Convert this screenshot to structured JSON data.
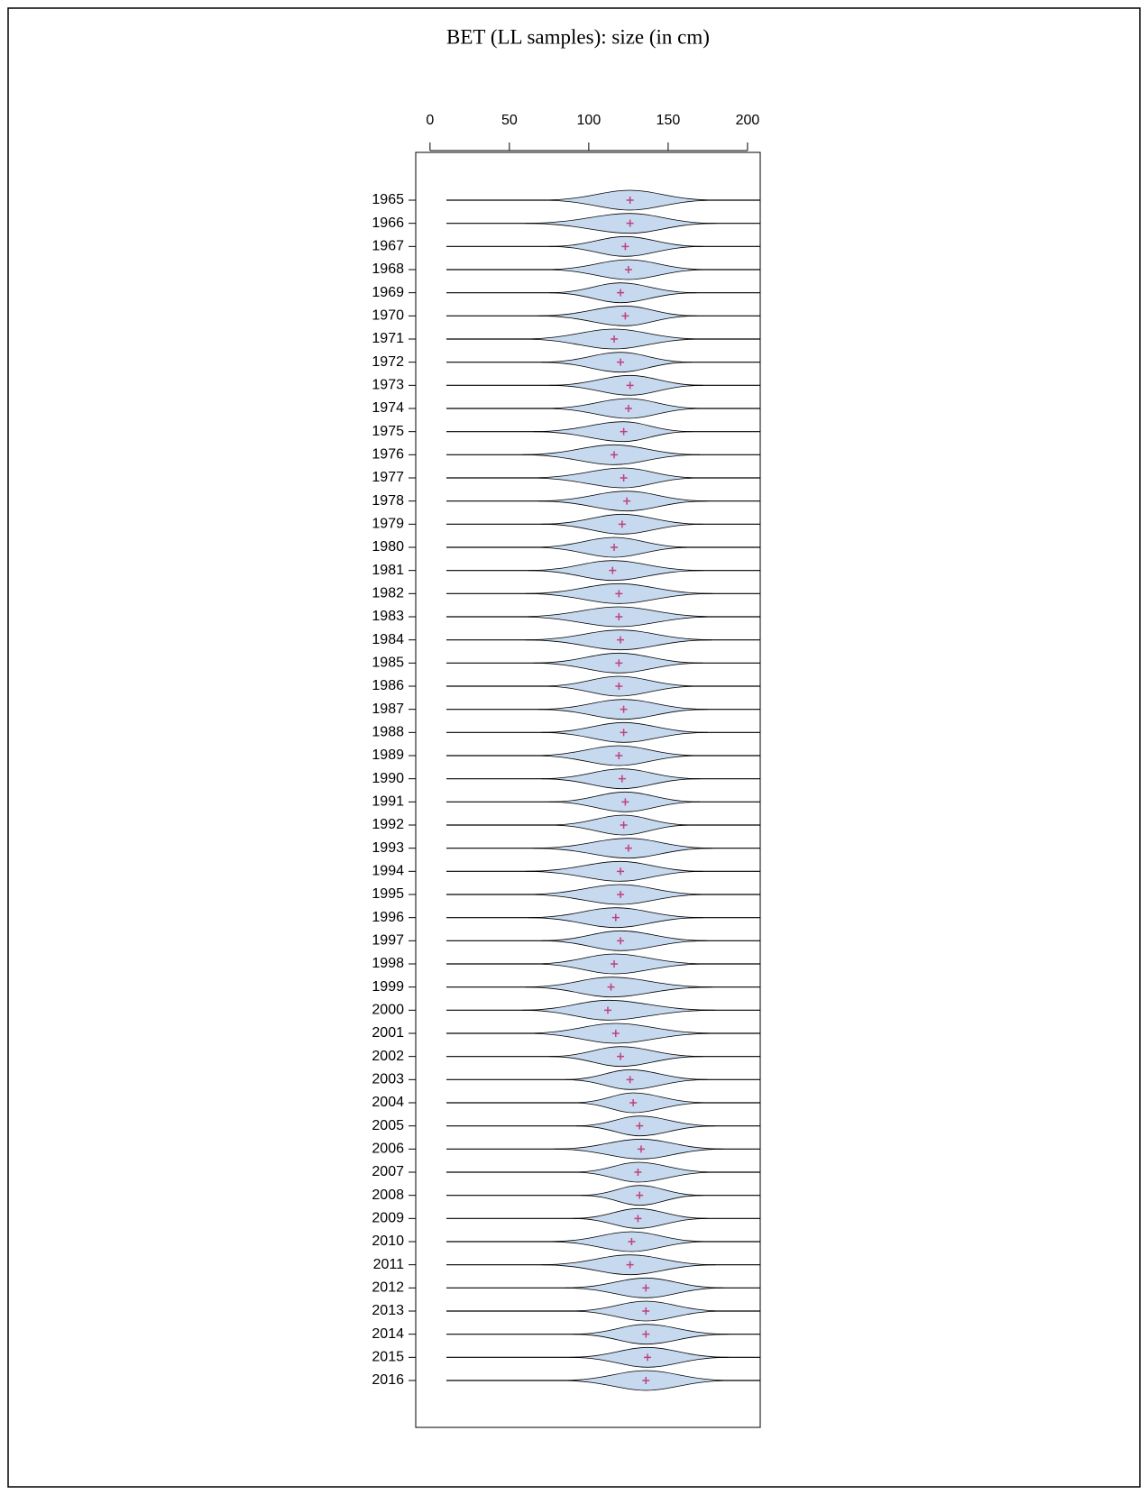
{
  "chart_data": {
    "type": "violin",
    "title": "BET (LL samples): size (in cm)",
    "categories": [
      "1965",
      "1966",
      "1967",
      "1968",
      "1969",
      "1970",
      "1971",
      "1972",
      "1973",
      "1974",
      "1975",
      "1976",
      "1977",
      "1978",
      "1979",
      "1980",
      "1981",
      "1982",
      "1983",
      "1984",
      "1985",
      "1986",
      "1987",
      "1988",
      "1989",
      "1990",
      "1991",
      "1992",
      "1993",
      "1994",
      "1995",
      "1996",
      "1997",
      "1998",
      "1999",
      "2000",
      "2001",
      "2002",
      "2003",
      "2004",
      "2005",
      "2006",
      "2007",
      "2008",
      "2009",
      "2010",
      "2011",
      "2012",
      "2013",
      "2014",
      "2015",
      "2016"
    ],
    "values": [
      126,
      126,
      123,
      125,
      120,
      123,
      116,
      120,
      126,
      125,
      122,
      116,
      122,
      124,
      121,
      116,
      115,
      119,
      119,
      120,
      119,
      119,
      122,
      122,
      119,
      121,
      123,
      122,
      125,
      120,
      120,
      117,
      120,
      116,
      114,
      112,
      117,
      120,
      126,
      128,
      132,
      133,
      131,
      132,
      131,
      127,
      126,
      136,
      136,
      136,
      137,
      136
    ],
    "low": [
      70,
      60,
      75,
      72,
      75,
      68,
      58,
      70,
      75,
      72,
      65,
      58,
      62,
      68,
      70,
      65,
      62,
      60,
      55,
      60,
      65,
      70,
      68,
      70,
      65,
      70,
      75,
      75,
      65,
      60,
      60,
      62,
      70,
      65,
      60,
      58,
      60,
      75,
      85,
      90,
      92,
      78,
      90,
      95,
      90,
      75,
      70,
      85,
      88,
      90,
      88,
      82
    ],
    "high": [
      180,
      180,
      172,
      175,
      168,
      168,
      172,
      165,
      172,
      172,
      165,
      170,
      170,
      175,
      172,
      165,
      172,
      178,
      180,
      178,
      172,
      170,
      175,
      175,
      170,
      170,
      170,
      165,
      178,
      172,
      175,
      172,
      175,
      175,
      178,
      180,
      180,
      172,
      175,
      175,
      180,
      185,
      180,
      172,
      175,
      175,
      180,
      185,
      185,
      188,
      188,
      190
    ],
    "xlim": [
      -9,
      208
    ],
    "xticks": [
      0,
      50,
      100,
      150,
      200
    ],
    "fill": "#c6d9ef",
    "mean_color": "#c0407f"
  }
}
